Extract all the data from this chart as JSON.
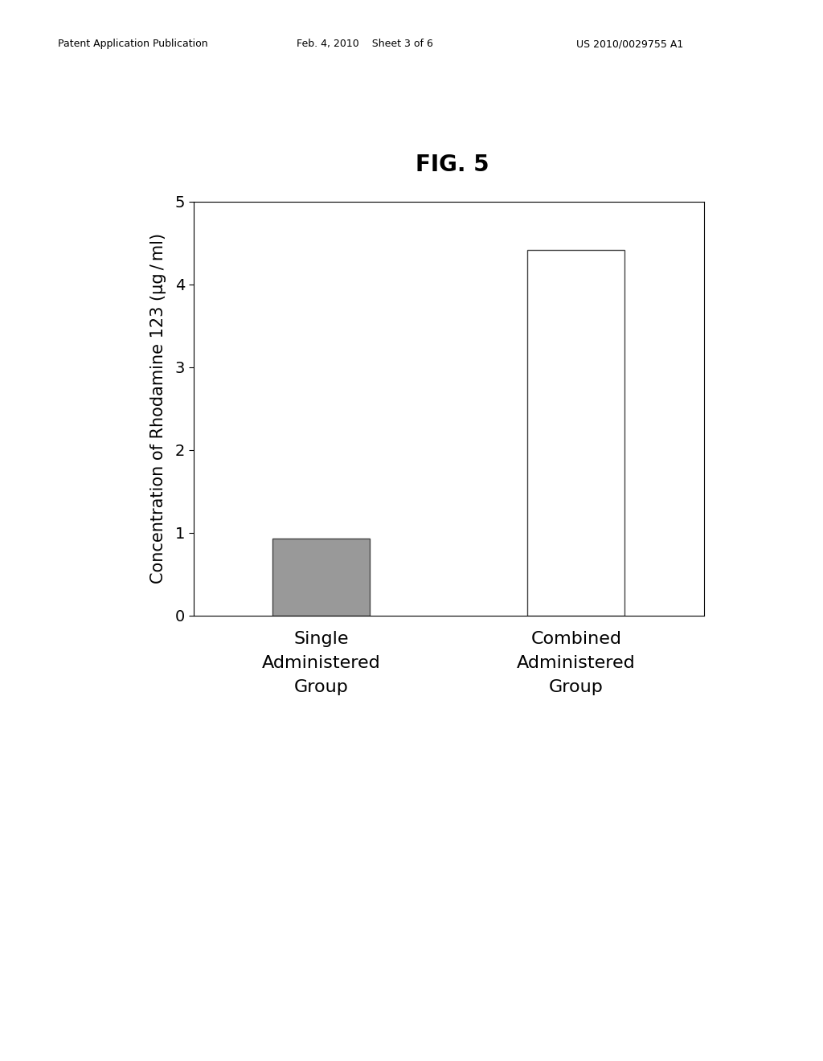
{
  "title": "FIG. 5",
  "ylabel": "Concentration of Rhodamine 123 (μg / ml)",
  "categories": [
    "Single\nAdministered\nGroup",
    "Combined\nAdministered\nGroup"
  ],
  "values": [
    0.93,
    4.42
  ],
  "bar_colors": [
    "#999999",
    "#ffffff"
  ],
  "bar_edgecolors": [
    "#444444",
    "#444444"
  ],
  "ylim": [
    0,
    5
  ],
  "yticks": [
    0,
    1,
    2,
    3,
    4,
    5
  ],
  "background_color": "#ffffff",
  "patent_header_left": "Patent Application Publication",
  "patent_header_mid": "Feb. 4, 2010    Sheet 3 of 6",
  "patent_header_right": "US 2010/0029755 A1",
  "title_fontsize": 20,
  "ylabel_fontsize": 15,
  "tick_fontsize": 14,
  "xlabel_fontsize": 16,
  "header_fontsize": 9
}
